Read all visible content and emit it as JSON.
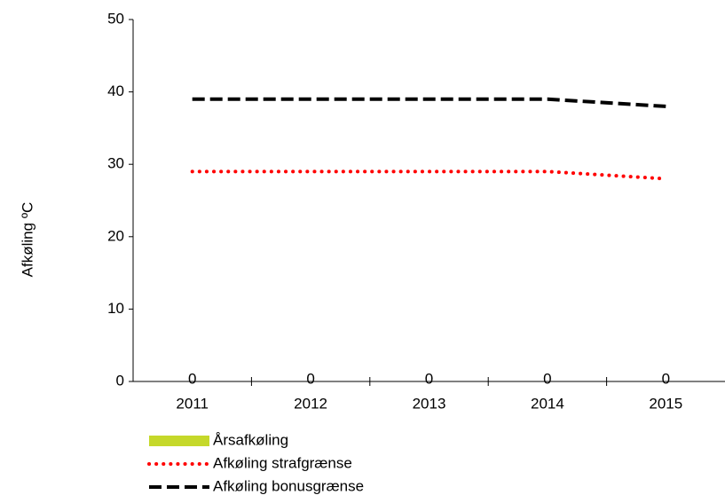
{
  "chart_data": {
    "type": "line",
    "y_label": "Afkøling ºC",
    "categories": [
      "2011",
      "2012",
      "2013",
      "2014",
      "2015"
    ],
    "series": [
      {
        "name": "Årsafkøling",
        "color": "#c5d82a",
        "values": [
          0,
          0,
          0,
          0,
          0
        ],
        "style": "bar"
      },
      {
        "name": "Afkøling strafgrænse",
        "color": "#ff0000",
        "values": [
          29,
          29,
          29,
          29,
          28
        ],
        "style": "dotted"
      },
      {
        "name": "Afkøling bonusgrænse",
        "color": "#000000",
        "values": [
          39,
          39,
          39,
          39,
          38
        ],
        "style": "dashed"
      }
    ],
    "ylim": [
      0,
      50
    ],
    "yticks": [
      0,
      10,
      20,
      30,
      40,
      50
    ],
    "grid": false,
    "legend": "bottom"
  }
}
